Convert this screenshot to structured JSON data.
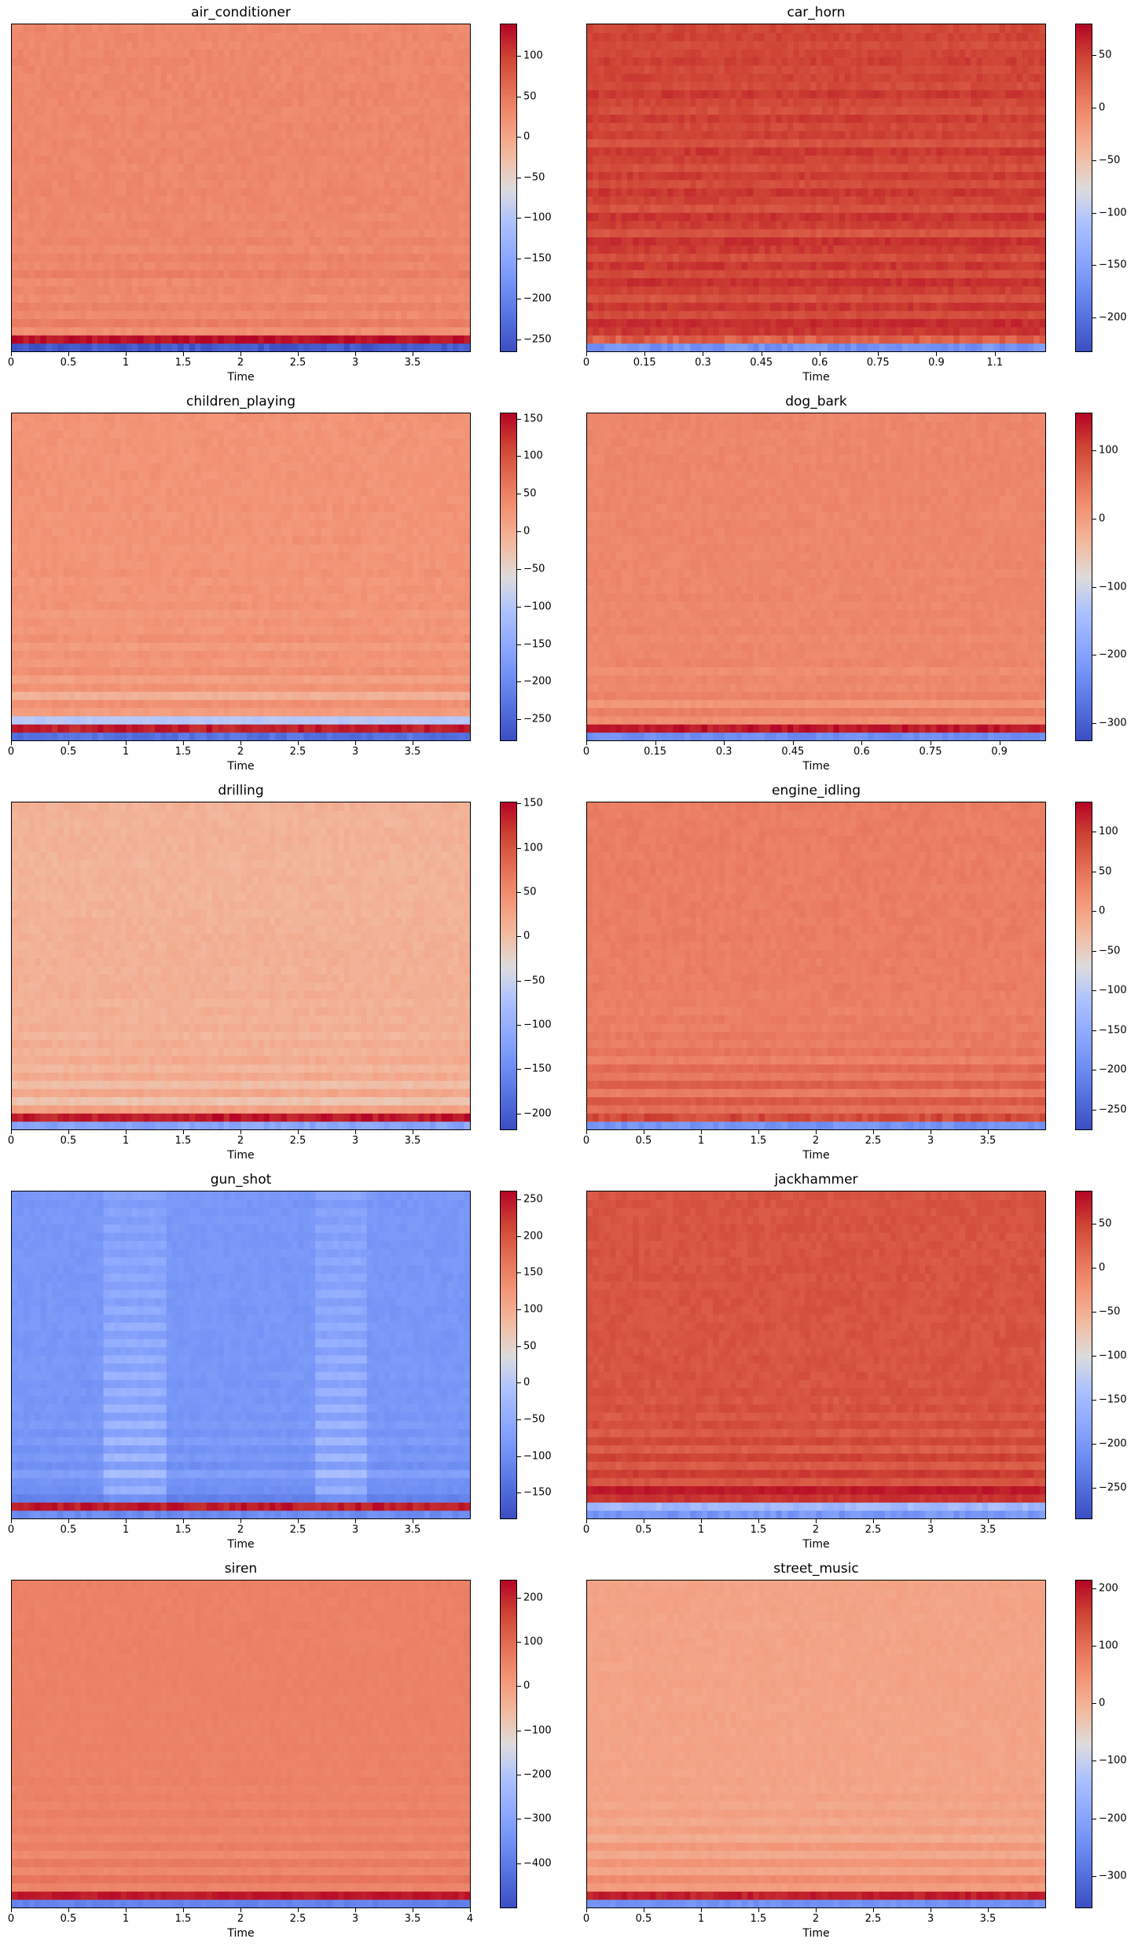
{
  "colormap": "coolwarm",
  "colors": {
    "low": "#3b4cc0",
    "mid": "#dddcdc",
    "high": "#b40426"
  },
  "chart_data": [
    {
      "type": "heatmap",
      "title": "air_conditioner",
      "xlabel": "Time",
      "xlim": [
        0,
        4.0
      ],
      "xticks": [
        0,
        0.5,
        1,
        1.5,
        2,
        2.5,
        3,
        3.5
      ],
      "xtick_labels": [
        "0",
        "0.5",
        "1",
        "1.5",
        "2",
        "2.5",
        "3",
        "3.5"
      ],
      "clim": [
        -265,
        140
      ],
      "cticks": [
        100,
        50,
        0,
        -50,
        -100,
        -150,
        -200,
        -250
      ],
      "ctick_labels": [
        "100",
        "50",
        "0",
        "−50",
        "−100",
        "−150",
        "−200",
        "−250"
      ],
      "n_coefficients": 40,
      "coefficient_levels": [
        -250,
        135,
        25,
        45,
        30,
        40,
        28,
        35,
        30,
        42,
        33,
        38,
        30,
        36,
        32,
        35,
        31,
        34,
        32,
        35,
        33,
        34,
        32,
        33,
        34,
        33,
        32,
        34,
        33,
        32,
        33,
        34,
        33,
        32,
        33,
        34,
        33,
        32,
        33,
        33
      ]
    },
    {
      "type": "heatmap",
      "title": "car_horn",
      "xlabel": "Time",
      "xlim": [
        0,
        1.18
      ],
      "xticks": [
        0,
        0.15,
        0.3,
        0.45,
        0.6,
        0.75,
        0.9,
        1.05
      ],
      "xtick_labels": [
        "0",
        "0.15",
        "0.3",
        "0.45",
        "0.6",
        "0.75",
        "0.9",
        "1.1"
      ],
      "clim": [
        -232,
        80
      ],
      "cticks": [
        50,
        0,
        -50,
        -100,
        -150,
        -200
      ],
      "ctick_labels": [
        "50",
        "0",
        "−50",
        "−100",
        "−150",
        "−200"
      ],
      "n_coefficients": 40,
      "coefficient_levels": [
        -165,
        28,
        55,
        60,
        42,
        55,
        38,
        50,
        58,
        42,
        55,
        40,
        52,
        58,
        35,
        50,
        56,
        38,
        48,
        55,
        42,
        52,
        40,
        48,
        54,
        36,
        50,
        44,
        52,
        40,
        46,
        54,
        42,
        48,
        44,
        50,
        46,
        42,
        48,
        45
      ]
    },
    {
      "type": "heatmap",
      "title": "children_playing",
      "xlabel": "Time",
      "xlim": [
        0,
        4.0
      ],
      "xticks": [
        0,
        0.5,
        1,
        1.5,
        2,
        2.5,
        3,
        3.5
      ],
      "xtick_labels": [
        "0",
        "0.5",
        "1",
        "1.5",
        "2",
        "2.5",
        "3",
        "3.5"
      ],
      "clim": [
        -278,
        158
      ],
      "cticks": [
        150,
        100,
        50,
        0,
        -50,
        -100,
        -150,
        -200,
        -250
      ],
      "ctick_labels": [
        "150",
        "100",
        "50",
        "0",
        "−50",
        "−100",
        "−150",
        "−200",
        "−250"
      ],
      "n_coefficients": 40,
      "coefficient_levels": [
        -230,
        140,
        -95,
        20,
        35,
        -5,
        30,
        15,
        35,
        25,
        32,
        20,
        34,
        26,
        30,
        22,
        32,
        28,
        30,
        26,
        31,
        28,
        30,
        27,
        31,
        29,
        30,
        28,
        31,
        29,
        30,
        29,
        31,
        30,
        29,
        30,
        31,
        30,
        29,
        30
      ]
    },
    {
      "type": "heatmap",
      "title": "dog_bark",
      "xlabel": "Time",
      "xlim": [
        0,
        1.0
      ],
      "xticks": [
        0,
        0.15,
        0.3,
        0.45,
        0.6,
        0.75,
        0.9
      ],
      "xtick_labels": [
        "0",
        "0.15",
        "0.3",
        "0.45",
        "0.6",
        "0.75",
        "0.9"
      ],
      "clim": [
        -325,
        155
      ],
      "cticks": [
        100,
        0,
        -100,
        -200,
        -300
      ],
      "ctick_labels": [
        "100",
        "0",
        "−100",
        "−200",
        "−300"
      ],
      "n_coefficients": 40,
      "coefficient_levels": [
        -230,
        140,
        20,
        40,
        10,
        35,
        25,
        30,
        20,
        32,
        28,
        30,
        25,
        31,
        28,
        30,
        27,
        31,
        29,
        30,
        28,
        31,
        29,
        30,
        29,
        31,
        30,
        29,
        30,
        31,
        30,
        29,
        30,
        31,
        30,
        30,
        29,
        30,
        31,
        30
      ]
    },
    {
      "type": "heatmap",
      "title": "drilling",
      "xlabel": "Time",
      "xlim": [
        0,
        4.0
      ],
      "xticks": [
        0,
        0.5,
        1,
        1.5,
        2,
        2.5,
        3,
        3.5
      ],
      "xtick_labels": [
        "0",
        "0.5",
        "1",
        "1.5",
        "2",
        "2.5",
        "3",
        "3.5"
      ],
      "clim": [
        -218,
        152
      ],
      "cticks": [
        150,
        100,
        50,
        0,
        -50,
        -100,
        -150,
        -200
      ],
      "ctick_labels": [
        "150",
        "100",
        "50",
        "0",
        "−50",
        "−100",
        "−150",
        "−200"
      ],
      "n_coefficients": 40,
      "coefficient_levels": [
        -115,
        140,
        30,
        -5,
        25,
        0,
        22,
        8,
        20,
        12,
        18,
        10,
        17,
        14,
        16,
        12,
        17,
        15,
        16,
        14,
        15,
        16,
        14,
        15,
        13,
        14,
        12,
        13,
        11,
        12,
        13,
        12,
        11,
        12,
        13,
        14,
        13,
        12,
        13,
        14
      ]
    },
    {
      "type": "heatmap",
      "title": "engine_idling",
      "xlabel": "Time",
      "xlim": [
        0,
        4.0
      ],
      "xticks": [
        0,
        0.5,
        1,
        1.5,
        2,
        2.5,
        3,
        3.5
      ],
      "xtick_labels": [
        "0",
        "0.5",
        "1",
        "1.5",
        "2",
        "2.5",
        "3",
        "3.5"
      ],
      "clim": [
        -275,
        138
      ],
      "cticks": [
        100,
        50,
        0,
        -50,
        -100,
        -150,
        -200,
        -250
      ],
      "ctick_labels": [
        "100",
        "50",
        "0",
        "−50",
        "−100",
        "−150",
        "−200",
        "−250"
      ],
      "n_coefficients": 40,
      "coefficient_levels": [
        -185,
        90,
        55,
        75,
        40,
        70,
        45,
        60,
        35,
        50,
        40,
        45,
        38,
        42,
        36,
        40,
        38,
        41,
        39,
        40,
        38,
        40,
        39,
        41,
        40,
        39,
        40,
        41,
        40,
        39,
        40,
        41,
        40,
        39,
        40,
        41,
        40,
        40,
        39,
        40
      ]
    },
    {
      "type": "heatmap",
      "title": "gun_shot",
      "xlabel": "Time",
      "xlim": [
        0,
        4.0
      ],
      "xticks": [
        0,
        0.5,
        1,
        1.5,
        2,
        2.5,
        3,
        3.5
      ],
      "xtick_labels": [
        "0",
        "0.5",
        "1",
        "1.5",
        "2",
        "2.5",
        "3",
        "3.5"
      ],
      "clim": [
        -185,
        262
      ],
      "cticks": [
        250,
        200,
        150,
        100,
        50,
        0,
        -50,
        -100,
        -150
      ],
      "ctick_labels": [
        "250",
        "200",
        "150",
        "100",
        "50",
        "0",
        "−50",
        "−100",
        "−150"
      ],
      "n_coefficients": 40,
      "coefficient_levels": [
        -100,
        245,
        -115,
        -95,
        -90,
        -70,
        -95,
        -80,
        -90,
        -75,
        -88,
        -78,
        -86,
        -80,
        -84,
        -82,
        -85,
        -80,
        -83,
        -81,
        -84,
        -82,
        -83,
        -81,
        -82,
        -83,
        -82,
        -81,
        -82,
        -83,
        -82,
        -81,
        -82,
        -83,
        -82,
        -82,
        -81,
        -82,
        -83,
        -82
      ]
    },
    {
      "type": "heatmap",
      "title": "jackhammer",
      "xlabel": "Time",
      "xlim": [
        0,
        4.0
      ],
      "xticks": [
        0,
        0.5,
        1,
        1.5,
        2,
        2.5,
        3,
        3.5
      ],
      "xtick_labels": [
        "0",
        "0.5",
        "1",
        "1.5",
        "2",
        "2.5",
        "3",
        "3.5"
      ],
      "clim": [
        -285,
        88
      ],
      "cticks": [
        50,
        0,
        -50,
        -100,
        -150,
        -200,
        -250
      ],
      "ctick_labels": [
        "50",
        "0",
        "−50",
        "−100",
        "−150",
        "−200",
        "−250"
      ],
      "n_coefficients": 40,
      "coefficient_levels": [
        -200,
        -150,
        60,
        75,
        35,
        55,
        30,
        50,
        28,
        45,
        30,
        42,
        32,
        40,
        34,
        38,
        35,
        37,
        36,
        37,
        35,
        36,
        37,
        36,
        35,
        36,
        37,
        36,
        35,
        36,
        37,
        36,
        36,
        35,
        36,
        37,
        36,
        35,
        36,
        36
      ]
    },
    {
      "type": "heatmap",
      "title": "siren",
      "xlabel": "Time",
      "xlim": [
        0,
        4.0
      ],
      "xticks": [
        0,
        0.5,
        1,
        1.5,
        2,
        2.5,
        3,
        3.5,
        4
      ],
      "xtick_labels": [
        "0",
        "0.5",
        "1",
        "1.5",
        "2",
        "2.5",
        "3",
        "3.5",
        "4"
      ],
      "clim": [
        -500,
        240
      ],
      "cticks": [
        200,
        100,
        0,
        -100,
        -200,
        -300,
        -400
      ],
      "ctick_labels": [
        "200",
        "100",
        "0",
        "−100",
        "−200",
        "−300",
        "−400"
      ],
      "n_coefficients": 40,
      "coefficient_levels": [
        -380,
        215,
        50,
        80,
        45,
        70,
        40,
        65,
        45,
        60,
        48,
        62,
        50,
        58,
        52,
        60,
        54,
        58,
        55,
        60,
        56,
        58,
        57,
        59,
        58,
        57,
        59,
        58,
        57,
        58,
        59,
        58,
        57,
        58,
        59,
        58,
        58,
        57,
        58,
        59
      ]
    },
    {
      "type": "heatmap",
      "title": "street_music",
      "xlabel": "Time",
      "xlim": [
        0,
        4.0
      ],
      "xticks": [
        0,
        0.5,
        1,
        1.5,
        2,
        2.5,
        3,
        3.5
      ],
      "xtick_labels": [
        "0",
        "0.5",
        "1",
        "1.5",
        "2",
        "2.5",
        "3",
        "3.5"
      ],
      "clim": [
        -355,
        215
      ],
      "cticks": [
        200,
        100,
        0,
        -100,
        -200,
        -300
      ],
      "ctick_labels": [
        "200",
        "100",
        "0",
        "−100",
        "−200",
        "−300"
      ],
      "n_coefficients": 40,
      "coefficient_levels": [
        -235,
        190,
        35,
        60,
        20,
        45,
        15,
        40,
        10,
        30,
        15,
        28,
        18,
        26,
        20,
        24,
        21,
        23,
        22,
        24,
        23,
        22,
        23,
        24,
        23,
        22,
        23,
        24,
        23,
        22,
        23,
        23,
        24,
        23,
        22,
        23,
        24,
        23,
        23,
        22
      ]
    }
  ]
}
